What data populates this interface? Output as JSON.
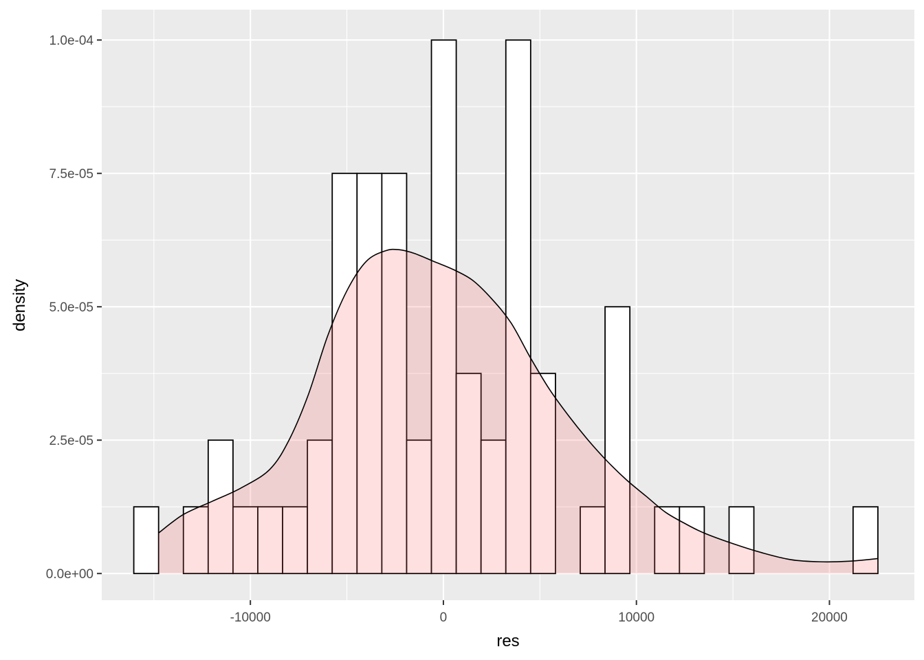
{
  "chart_data": {
    "type": "bar",
    "title": "",
    "xlabel": "res",
    "ylabel": "density",
    "xlim": [
      -17700,
      24400
    ],
    "ylim": [
      -5e-06,
      0.0001057
    ],
    "x_ticks": [
      -10000,
      0,
      10000,
      20000
    ],
    "x_tick_labels": [
      "-10000",
      "0",
      "10000",
      "20000"
    ],
    "y_ticks": [
      0,
      2.5e-05,
      5e-05,
      7.5e-05,
      0.0001
    ],
    "y_tick_labels": [
      "0.0e+00",
      "2.5e-05",
      "5.0e-05",
      "7.5e-05",
      "1.0e-04"
    ],
    "grid": true,
    "histogram": {
      "bin_edges": [
        -16040,
        -14755,
        -13470,
        -12185,
        -10900,
        -9615,
        -8330,
        -7045,
        -5760,
        -4475,
        -3190,
        -1905,
        -620,
        665,
        1950,
        3235,
        4520,
        5805,
        7090,
        8375,
        9660,
        10945,
        12230,
        13515,
        14800,
        16085,
        17370,
        18655,
        19940,
        21225,
        22510
      ],
      "density": [
        1.25e-05,
        0,
        1.25e-05,
        2.5e-05,
        1.25e-05,
        1.25e-05,
        1.25e-05,
        2.5e-05,
        7.5e-05,
        7.5e-05,
        7.5e-05,
        2.5e-05,
        0.0001,
        3.75e-05,
        2.5e-05,
        0.0001,
        3.75e-05,
        0,
        1.25e-05,
        5e-05,
        0,
        1.25e-05,
        1.25e-05,
        0,
        1.25e-05,
        0,
        0,
        0,
        0,
        1.25e-05
      ],
      "fill": "#FFFFFF",
      "stroke": "#000000"
    },
    "density_curve": {
      "x": [
        -14755,
        -13500,
        -12000,
        -10500,
        -9000,
        -8000,
        -7000,
        -6000,
        -5000,
        -4000,
        -3000,
        -2300,
        -1500,
        -500,
        500,
        1500,
        2500,
        3500,
        4500,
        5500,
        6500,
        7500,
        8500,
        9500,
        10500,
        11500,
        12500,
        13500,
        15000,
        16500,
        18000,
        19500,
        21000,
        22510
      ],
      "y": [
        7.6e-06,
        1.1e-05,
        1.35e-05,
        1.6e-05,
        1.95e-05,
        2.5e-05,
        3.35e-05,
        4.45e-05,
        5.3e-05,
        5.85e-05,
        6.05e-05,
        6.07e-05,
        6e-05,
        5.85e-05,
        5.7e-05,
        5.5e-05,
        5.15e-05,
        4.7e-05,
        4.05e-05,
        3.45e-05,
        2.95e-05,
        2.5e-05,
        2.1e-05,
        1.75e-05,
        1.45e-05,
        1.15e-05,
        9.4e-06,
        7.6e-06,
        5.6e-06,
        3.9e-06,
        2.6e-06,
        2.2e-06,
        2.3e-06,
        2.8e-06
      ],
      "fill": "#FF6666",
      "fill_opacity": 0.2,
      "stroke": "#000000"
    },
    "panel_background": "#EBEBEB",
    "grid_color": "#FFFFFF"
  }
}
